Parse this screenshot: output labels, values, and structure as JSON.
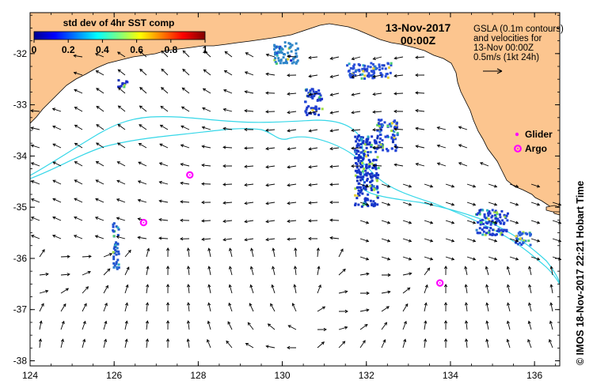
{
  "colorbar": {
    "title": "std dev of 4hr SST comp",
    "ticks": [
      "0",
      "0.2",
      "0.4",
      "0.6",
      "0.8",
      "1"
    ]
  },
  "date": {
    "line1": "13-Nov-2017",
    "line2": "00:00Z"
  },
  "legend": {
    "lines": [
      "GSLA (0.1m contours)",
      "and velocities for",
      "13-Nov 00:00Z",
      "0.5m/s (1kt 24h)"
    ],
    "glider_label": "Glider",
    "argo_label": "Argo"
  },
  "credit": "©  IMOS 18-Nov-2017 22:21 Hobart Time",
  "axes": {
    "x_ticks": [
      "124",
      "126",
      "128",
      "130",
      "132",
      "134",
      "136"
    ],
    "y_ticks": [
      "-32",
      "-33",
      "-34",
      "-35",
      "-36",
      "-37",
      "-38"
    ],
    "lon_range": [
      124,
      136.6
    ],
    "lat_range": [
      -38.1,
      -31.2
    ]
  },
  "argo_floats": [
    {
      "lon": 127.8,
      "lat": -34.37
    },
    {
      "lon": 126.7,
      "lat": -35.3
    },
    {
      "lon": 133.75,
      "lat": -36.48
    }
  ],
  "colors": {
    "land": "#FCC58F",
    "ocean": "#FFFFFF",
    "contour": "#35D7E8",
    "argo": "#FF00FF",
    "glider": "#FF00FF"
  }
}
